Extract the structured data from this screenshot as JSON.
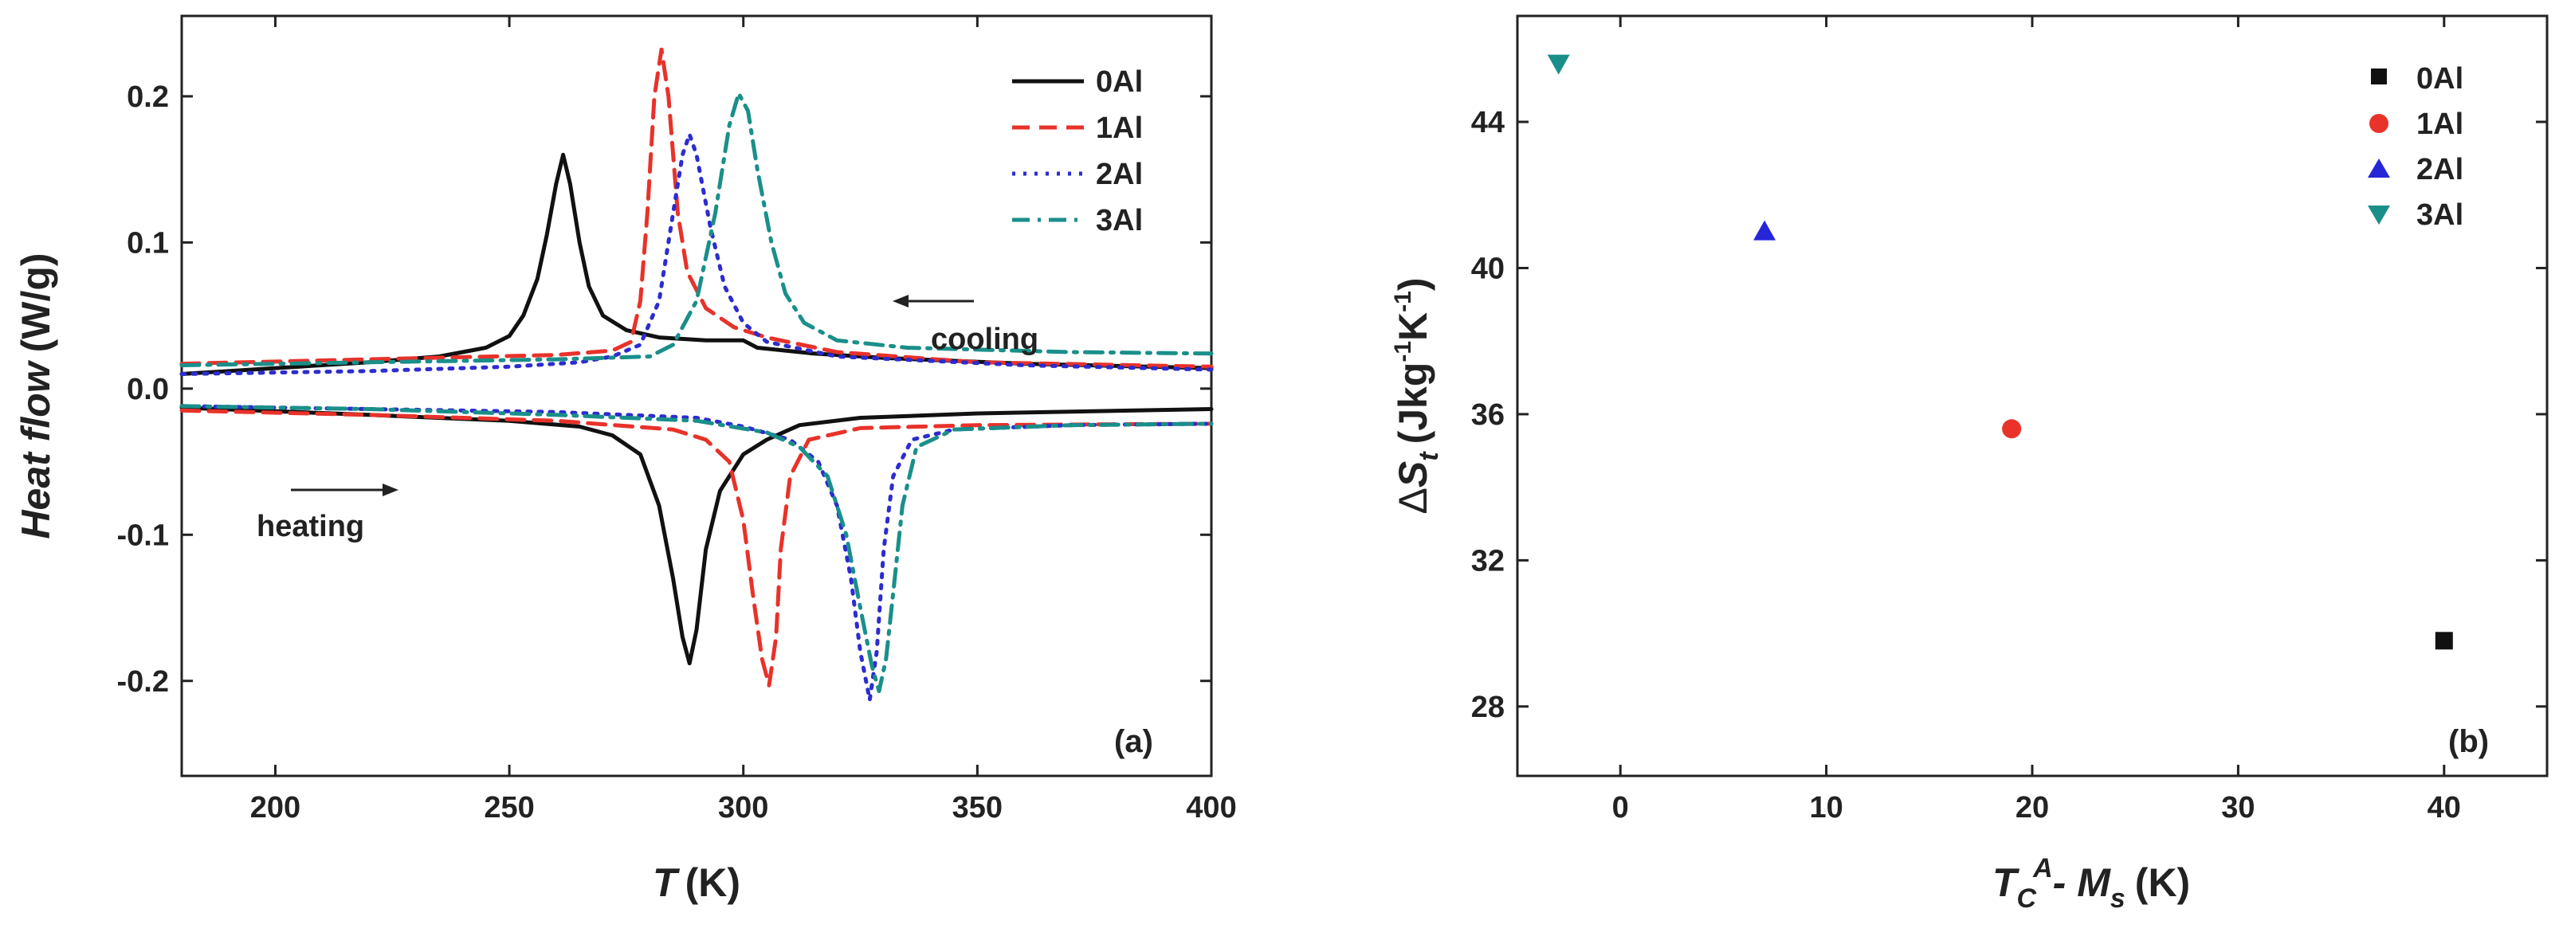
{
  "chart_data": [
    {
      "type": "line",
      "panel_label": "(a)",
      "xlabel": "T",
      "xlabel_unit": "(K)",
      "ylabel": "Heat flow",
      "ylabel_unit": "(W/g)",
      "xlim": [
        180,
        400
      ],
      "ylim": [
        -0.265,
        0.255
      ],
      "xticks": [
        200,
        250,
        300,
        350,
        400
      ],
      "xtick_labels": [
        "200",
        "250",
        "300",
        "350",
        "400"
      ],
      "yticks": [
        -0.2,
        -0.1,
        0.0,
        0.1,
        0.2
      ],
      "ytick_labels": [
        "-0.2",
        "-0.1",
        "0.0",
        "0.1",
        "0.2"
      ],
      "legend_position": "top-right",
      "annotations": {
        "cooling": "cooling",
        "heating": "heating"
      },
      "series": [
        {
          "name": "0Al",
          "color": "#111111",
          "dash": "solid",
          "cooling": [
            [
              180,
              0.01
            ],
            [
              200,
              0.014
            ],
            [
              220,
              0.018
            ],
            [
              235,
              0.022
            ],
            [
              245,
              0.028
            ],
            [
              250,
              0.036
            ],
            [
              253,
              0.05
            ],
            [
              256,
              0.075
            ],
            [
              258,
              0.105
            ],
            [
              260,
              0.14
            ],
            [
              261.5,
              0.16
            ],
            [
              263,
              0.14
            ],
            [
              265,
              0.1
            ],
            [
              267,
              0.07
            ],
            [
              270,
              0.05
            ],
            [
              275,
              0.04
            ],
            [
              282,
              0.035
            ],
            [
              292,
              0.033
            ],
            [
              300,
              0.033
            ],
            [
              303,
              0.028
            ],
            [
              315,
              0.024
            ],
            [
              330,
              0.021
            ],
            [
              360,
              0.017
            ],
            [
              400,
              0.014
            ]
          ],
          "heating": [
            [
              180,
              -0.013
            ],
            [
              220,
              -0.018
            ],
            [
              250,
              -0.022
            ],
            [
              265,
              -0.026
            ],
            [
              272,
              -0.032
            ],
            [
              278,
              -0.045
            ],
            [
              282,
              -0.08
            ],
            [
              285,
              -0.13
            ],
            [
              287,
              -0.17
            ],
            [
              288.5,
              -0.188
            ],
            [
              290,
              -0.165
            ],
            [
              292,
              -0.11
            ],
            [
              295,
              -0.07
            ],
            [
              300,
              -0.045
            ],
            [
              305,
              -0.035
            ],
            [
              312,
              -0.025
            ],
            [
              325,
              -0.02
            ],
            [
              350,
              -0.017
            ],
            [
              400,
              -0.014
            ]
          ]
        },
        {
          "name": "1Al",
          "color": "#e8322a",
          "dash": "dashed",
          "cooling": [
            [
              180,
              0.017
            ],
            [
              220,
              0.02
            ],
            [
              260,
              0.023
            ],
            [
              272,
              0.026
            ],
            [
              276,
              0.032
            ],
            [
              278,
              0.06
            ],
            [
              279.5,
              0.12
            ],
            [
              281,
              0.2
            ],
            [
              282.5,
              0.232
            ],
            [
              284,
              0.2
            ],
            [
              286,
              0.12
            ],
            [
              288,
              0.08
            ],
            [
              292,
              0.055
            ],
            [
              298,
              0.042
            ],
            [
              305,
              0.035
            ],
            [
              320,
              0.025
            ],
            [
              350,
              0.018
            ],
            [
              400,
              0.015
            ]
          ],
          "heating": [
            [
              180,
              -0.015
            ],
            [
              220,
              -0.018
            ],
            [
              260,
              -0.022
            ],
            [
              285,
              -0.028
            ],
            [
              292,
              -0.035
            ],
            [
              297,
              -0.05
            ],
            [
              300,
              -0.09
            ],
            [
              302,
              -0.14
            ],
            [
              304,
              -0.185
            ],
            [
              305.5,
              -0.203
            ],
            [
              307,
              -0.17
            ],
            [
              308,
              -0.11
            ],
            [
              310,
              -0.06
            ],
            [
              314,
              -0.035
            ],
            [
              325,
              -0.027
            ],
            [
              350,
              -0.025
            ],
            [
              400,
              -0.024
            ]
          ]
        },
        {
          "name": "2Al",
          "color": "#2c2ccf",
          "dash": "dotted",
          "cooling": [
            [
              180,
              0.01
            ],
            [
              220,
              0.012
            ],
            [
              250,
              0.015
            ],
            [
              265,
              0.018
            ],
            [
              272,
              0.022
            ],
            [
              278,
              0.03
            ],
            [
              282,
              0.06
            ],
            [
              285,
              0.12
            ],
            [
              287,
              0.16
            ],
            [
              288.5,
              0.174
            ],
            [
              290,
              0.16
            ],
            [
              293,
              0.11
            ],
            [
              296,
              0.07
            ],
            [
              300,
              0.045
            ],
            [
              305,
              0.032
            ],
            [
              320,
              0.022
            ],
            [
              360,
              0.016
            ],
            [
              400,
              0.013
            ]
          ],
          "heating": [
            [
              180,
              -0.012
            ],
            [
              220,
              -0.014
            ],
            [
              260,
              -0.016
            ],
            [
              290,
              -0.02
            ],
            [
              300,
              -0.026
            ],
            [
              310,
              -0.035
            ],
            [
              316,
              -0.05
            ],
            [
              320,
              -0.08
            ],
            [
              323,
              -0.13
            ],
            [
              325,
              -0.18
            ],
            [
              327,
              -0.213
            ],
            [
              328.5,
              -0.18
            ],
            [
              330,
              -0.11
            ],
            [
              332,
              -0.06
            ],
            [
              336,
              -0.035
            ],
            [
              345,
              -0.028
            ],
            [
              370,
              -0.025
            ],
            [
              400,
              -0.024
            ]
          ]
        },
        {
          "name": "3Al",
          "color": "#1a8f8a",
          "dash": "dashdot",
          "cooling": [
            [
              180,
              0.016
            ],
            [
              220,
              0.018
            ],
            [
              260,
              0.02
            ],
            [
              280,
              0.022
            ],
            [
              285,
              0.03
            ],
            [
              290,
              0.06
            ],
            [
              294,
              0.12
            ],
            [
              297,
              0.18
            ],
            [
              299,
              0.202
            ],
            [
              301,
              0.19
            ],
            [
              303,
              0.15
            ],
            [
              306,
              0.1
            ],
            [
              309,
              0.065
            ],
            [
              313,
              0.045
            ],
            [
              320,
              0.033
            ],
            [
              335,
              0.028
            ],
            [
              370,
              0.025
            ],
            [
              400,
              0.024
            ]
          ],
          "heating": [
            [
              180,
              -0.012
            ],
            [
              220,
              -0.014
            ],
            [
              260,
              -0.018
            ],
            [
              290,
              -0.022
            ],
            [
              305,
              -0.03
            ],
            [
              312,
              -0.04
            ],
            [
              318,
              -0.06
            ],
            [
              322,
              -0.1
            ],
            [
              325,
              -0.15
            ],
            [
              327.5,
              -0.19
            ],
            [
              329,
              -0.207
            ],
            [
              330.5,
              -0.185
            ],
            [
              332,
              -0.14
            ],
            [
              334,
              -0.08
            ],
            [
              337,
              -0.04
            ],
            [
              345,
              -0.028
            ],
            [
              370,
              -0.025
            ],
            [
              400,
              -0.024
            ]
          ]
        }
      ]
    },
    {
      "type": "scatter",
      "panel_label": "(b)",
      "xlabel_prefix": "T",
      "xlabel_sub": "C",
      "xlabel_sup": "A",
      "xlabel_mid": "- M",
      "xlabel_sub2": "s",
      "xlabel_unit": "(K)",
      "ylabel_prefix": "Δ",
      "ylabel_var": "S",
      "ylabel_sub": "t",
      "ylabel_unit": "(Jkg",
      "ylabel_exp1": "-1",
      "ylabel_unit2": "K",
      "ylabel_exp2": "-1",
      "ylabel_close": ")",
      "xlim": [
        -5,
        45
      ],
      "ylim": [
        26.1,
        46.9
      ],
      "xticks": [
        0,
        10,
        20,
        30,
        40
      ],
      "xtick_labels": [
        "0",
        "10",
        "20",
        "30",
        "40"
      ],
      "yticks": [
        28,
        32,
        36,
        40,
        44
      ],
      "ytick_labels": [
        "28",
        "32",
        "36",
        "40",
        "44"
      ],
      "legend_position": "top-right",
      "series": [
        {
          "name": "0Al",
          "marker": "square",
          "color": "#111111",
          "x": 40,
          "y": 29.8
        },
        {
          "name": "1Al",
          "marker": "circle",
          "color": "#e8322a",
          "x": 19,
          "y": 35.6
        },
        {
          "name": "2Al",
          "marker": "triangle-up",
          "color": "#2626d6",
          "x": 7,
          "y": 41.0
        },
        {
          "name": "3Al",
          "marker": "triangle-down",
          "color": "#1a8f8a",
          "x": -3,
          "y": 45.6
        }
      ]
    }
  ]
}
